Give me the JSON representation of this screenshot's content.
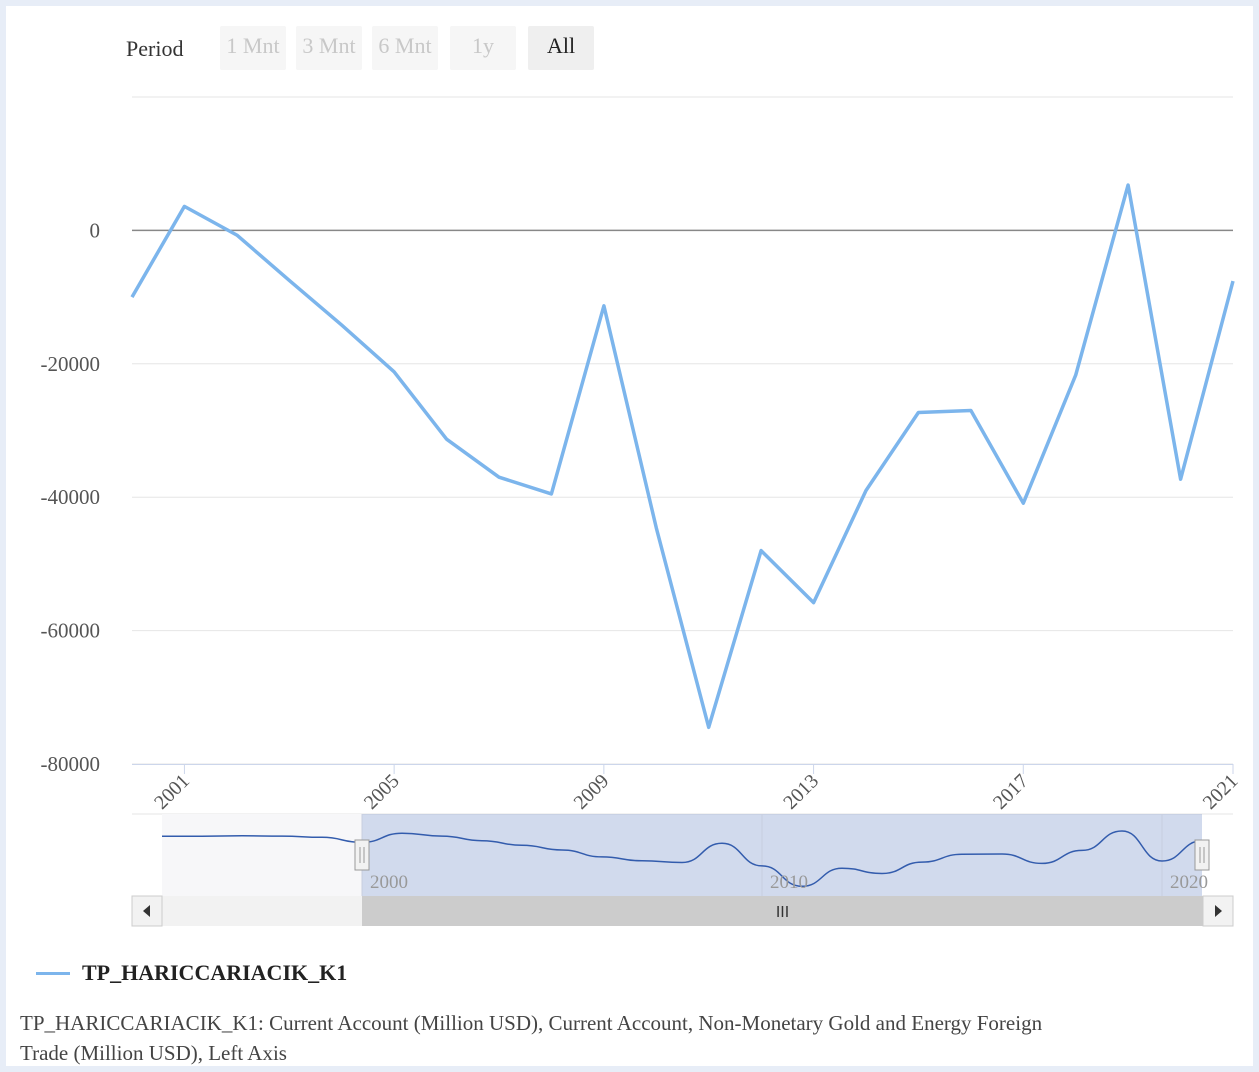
{
  "range_selector": {
    "label": "Period",
    "buttons": [
      {
        "label": "1 Mnt",
        "active": false
      },
      {
        "label": "3 Mnt",
        "active": false
      },
      {
        "label": "6 Mnt",
        "active": false
      },
      {
        "label": "1y",
        "active": false
      },
      {
        "label": "All",
        "active": true
      }
    ]
  },
  "chart_data": {
    "type": "line",
    "series": [
      {
        "name": "TP_HARICCARIACIK_K1",
        "color": "#7cb5ec",
        "x": [
          2000,
          2001,
          2002,
          2003,
          2004,
          2005,
          2006,
          2007,
          2008,
          2009,
          2010,
          2011,
          2012,
          2013,
          2014,
          2015,
          2016,
          2017,
          2018,
          2019,
          2020,
          2021
        ],
        "values": [
          -10000,
          3600,
          -700,
          -7500,
          -14200,
          -21200,
          -31300,
          -37000,
          -39500,
          -11300,
          -44600,
          -74500,
          -48000,
          -55800,
          -39000,
          -27300,
          -27000,
          -40900,
          -21700,
          6800,
          -37300,
          -7600
        ]
      }
    ],
    "x_tick_labels": [
      "2001",
      "2005",
      "2009",
      "2013",
      "2017",
      "2021"
    ],
    "y_tick_labels": [
      "0",
      "-20000",
      "-40000",
      "-60000",
      "-80000"
    ],
    "navigator_labels": [
      "2000",
      "2010",
      "2020"
    ],
    "scrollbar_grip": "III",
    "xlim": [
      2000,
      2021
    ],
    "ylim": [
      -80000,
      20000
    ],
    "grid": true,
    "legend_position": "bottom-left"
  },
  "description": "TP_HARICCARIACIK_K1: Current Account (Million USD), Current Account, Non-Monetary Gold and Energy Foreign Trade (Million USD), Left Axis"
}
